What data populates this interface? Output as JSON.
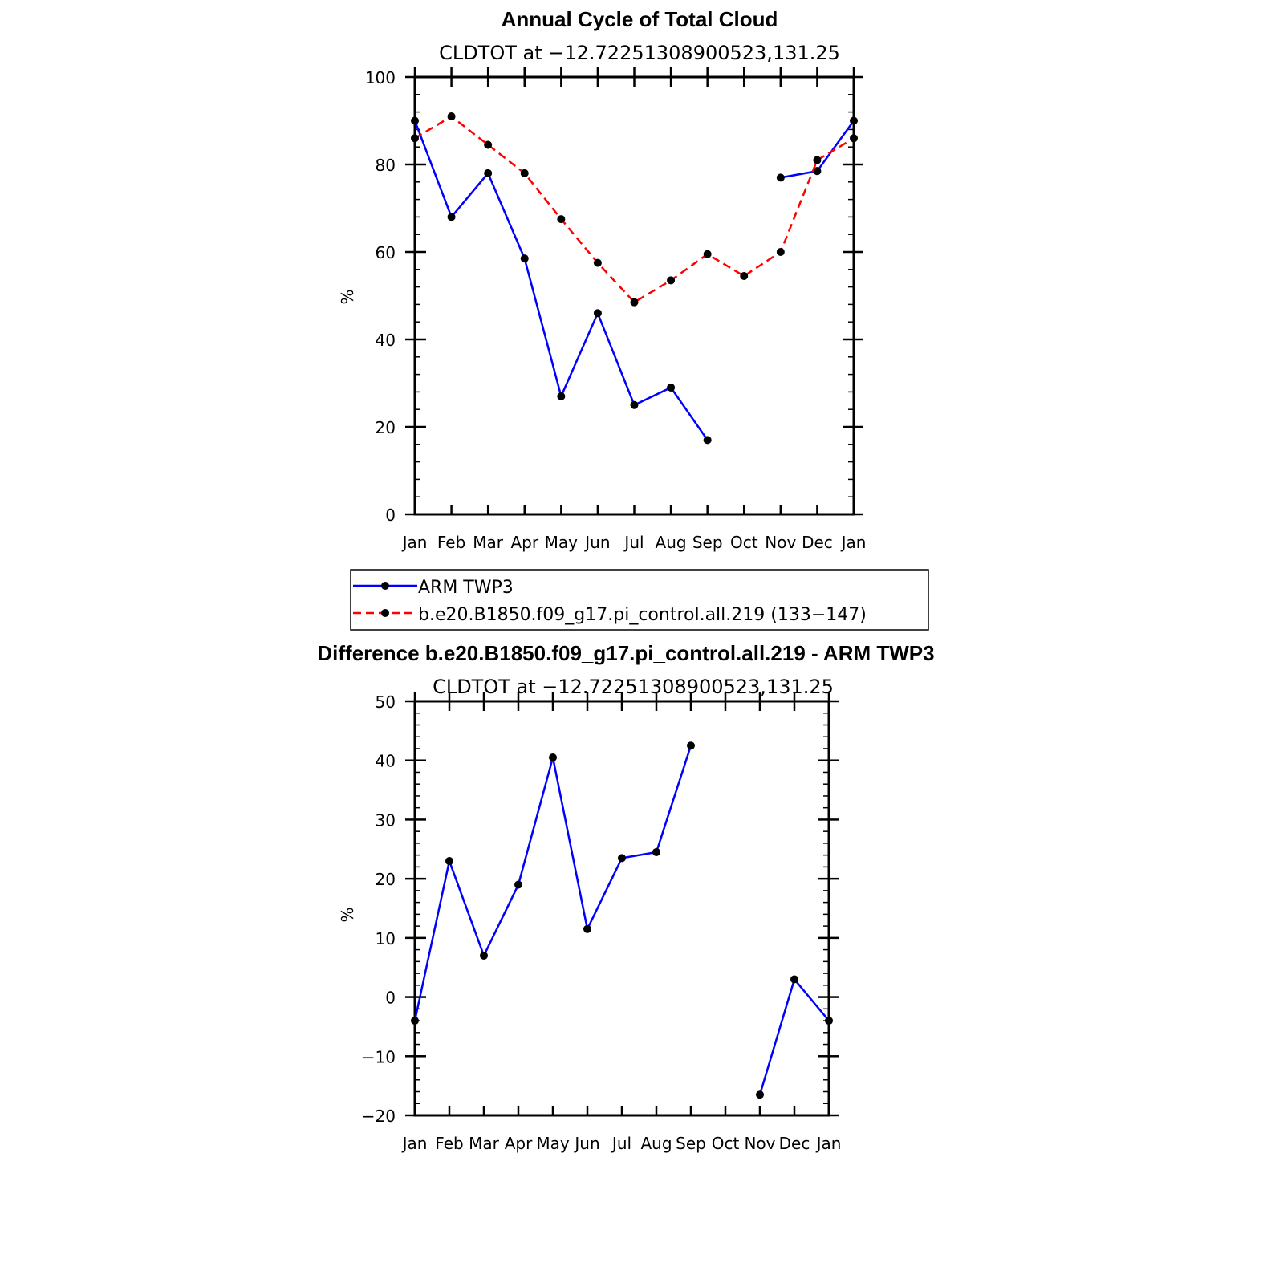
{
  "chart_data": [
    {
      "type": "line",
      "title": "Annual Cycle of Total Cloud",
      "subtitle": "CLDTOT at −12.72251308900523,131.25",
      "xlabel": "",
      "ylabel": "%",
      "categories": [
        "Jan",
        "Feb",
        "Mar",
        "Apr",
        "May",
        "Jun",
        "Jul",
        "Aug",
        "Sep",
        "Oct",
        "Nov",
        "Dec",
        "Jan"
      ],
      "ylim": [
        0,
        100
      ],
      "yticks": [
        0,
        20,
        40,
        60,
        80,
        100
      ],
      "ytick_labels": [
        "0",
        "20",
        "40",
        "60",
        "80",
        "100"
      ],
      "series": [
        {
          "name": "ARM TWP3",
          "color": "#0000ff",
          "dash": "solid",
          "values": [
            90,
            68,
            78,
            58.5,
            27,
            46,
            25,
            29,
            17,
            null,
            77,
            78.5,
            90
          ]
        },
        {
          "name": "b.e20.B1850.f09_g17.pi_control.all.219 (133−147)",
          "color": "#ff0000",
          "dash": "dashed",
          "values": [
            86,
            91,
            84.5,
            78,
            67.5,
            57.5,
            48.5,
            53.5,
            59.5,
            54.5,
            60,
            81,
            86
          ]
        }
      ],
      "legend": {
        "position": "below",
        "entries": [
          "ARM TWP3",
          "b.e20.B1850.f09_g17.pi_control.all.219 (133−147)"
        ]
      }
    },
    {
      "type": "line",
      "title": "Difference b.e20.B1850.f09_g17.pi_control.all.219 - ARM TWP3",
      "subtitle": "CLDTOT at −12.72251308900523,131.25",
      "xlabel": "",
      "ylabel": "%",
      "categories": [
        "Jan",
        "Feb",
        "Mar",
        "Apr",
        "May",
        "Jun",
        "Jul",
        "Aug",
        "Sep",
        "Oct",
        "Nov",
        "Dec",
        "Jan"
      ],
      "ylim": [
        -20,
        50
      ],
      "yticks": [
        -20,
        -10,
        0,
        10,
        20,
        30,
        40,
        50
      ],
      "ytick_labels": [
        "−20",
        "−10",
        "0",
        "10",
        "20",
        "30",
        "40",
        "50"
      ],
      "series": [
        {
          "name": "Difference",
          "color": "#0000ff",
          "dash": "solid",
          "values": [
            -4,
            23,
            7,
            19,
            40.5,
            11.5,
            23.5,
            24.5,
            42.5,
            null,
            -16.5,
            3,
            -4
          ]
        }
      ]
    }
  ]
}
